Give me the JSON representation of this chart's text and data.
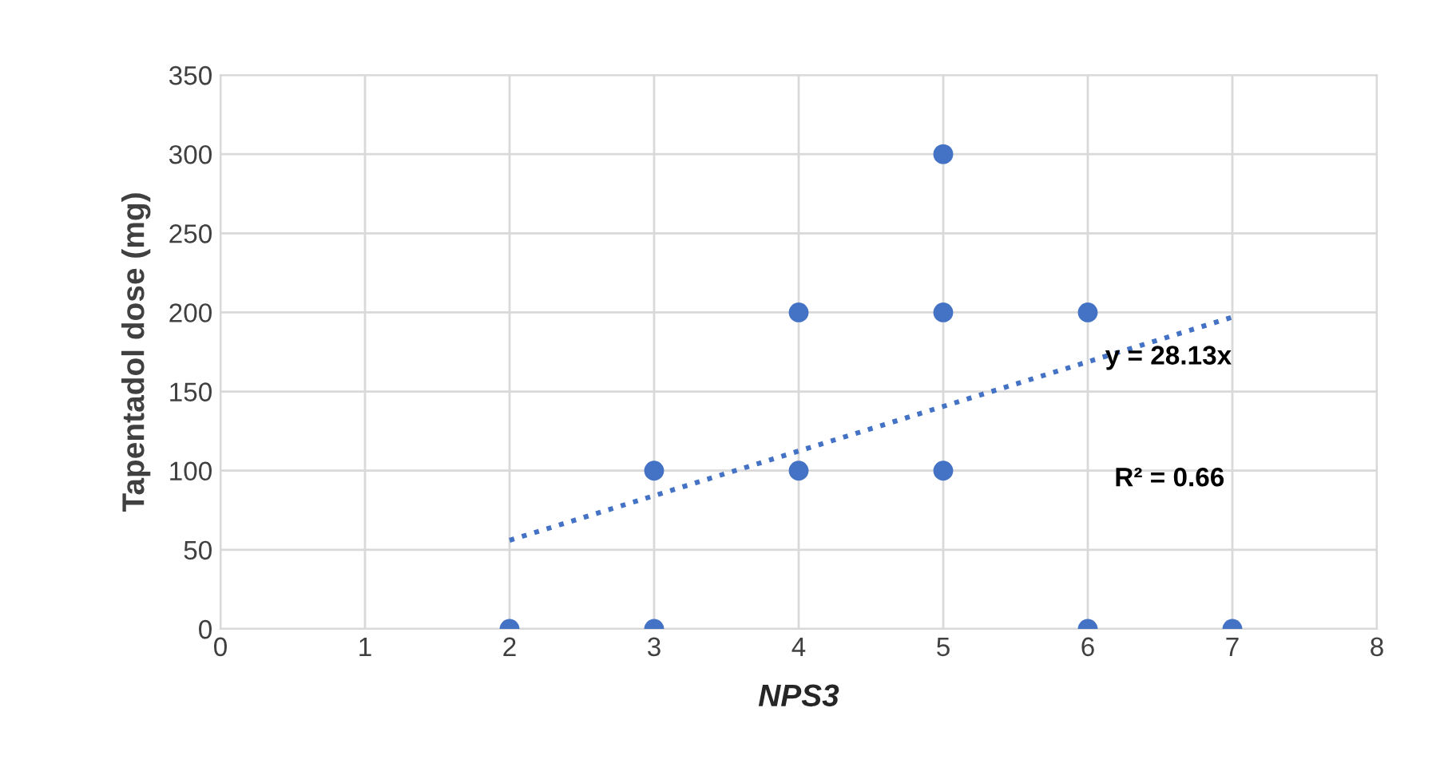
{
  "chart_data": {
    "type": "scatter",
    "xlabel": "NPS3",
    "ylabel": "Tapentadol dose (mg)",
    "series": [
      {
        "color": "#4472c4",
        "marker": "circle",
        "x": [
          2,
          3,
          3,
          4,
          4,
          5,
          5,
          5,
          6,
          6,
          7
        ],
        "values": [
          0,
          0,
          100,
          100,
          200,
          100,
          200,
          300,
          200,
          0,
          0
        ]
      },
      {
        "type": "line",
        "color": "#4472c4",
        "marker": "none",
        "line_style": "dotted",
        "x": [
          2,
          7
        ],
        "values": [
          56,
          197
        ]
      }
    ],
    "annotations": [
      "y = 28.13x",
      "R² = 0.66"
    ],
    "xlim": [
      0,
      8
    ],
    "xticks": [
      0,
      1,
      2,
      3,
      4,
      5,
      6,
      7,
      8
    ],
    "ylim": [
      0,
      350
    ],
    "yticks": [
      0,
      50,
      100,
      150,
      200,
      250,
      300,
      350
    ],
    "grid": true,
    "legend": false
  }
}
